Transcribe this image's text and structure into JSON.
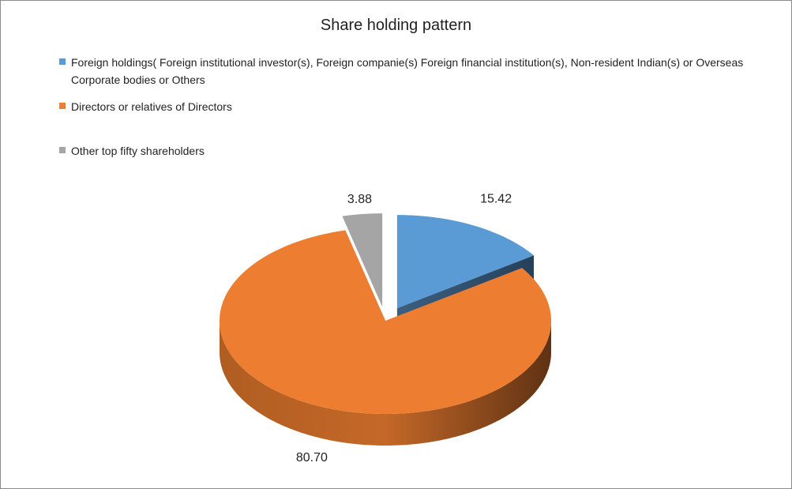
{
  "chart_data": {
    "type": "pie",
    "title": "Share holding pattern",
    "three_d": true,
    "exploded": true,
    "legend_position": "top-left",
    "categories": [
      "Foreign holdings( Foreign institutional investor(s), Foreign companie(s) Foreign financial institution(s),  Non-resident Indian(s) or Overseas Corporate bodies or Others",
      "Directors or relatives of Directors",
      "Other top fifty shareholders"
    ],
    "values": [
      15.42,
      80.7,
      3.88
    ],
    "data_labels": [
      "15.42",
      "80.70",
      "3.88"
    ],
    "colors": [
      "#5b9bd5",
      "#ed7d31",
      "#a5a5a5"
    ]
  }
}
